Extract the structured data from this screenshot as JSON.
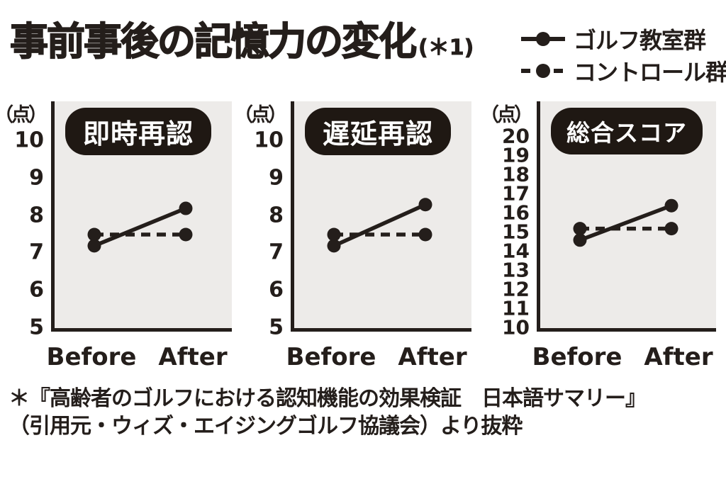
{
  "header": {
    "title": "事前事後の記憶力の変化",
    "title_note": "(＊1)"
  },
  "legend": {
    "position": "top-right",
    "items": [
      {
        "label": "ゴルフ教室群",
        "line_style": "solid",
        "marker": "circle"
      },
      {
        "label": "コントロール群",
        "line_style": "dashed",
        "marker": "circle"
      }
    ]
  },
  "chart_data": [
    {
      "type": "line",
      "title": "即時再認",
      "ylabel": "（点）",
      "x": [
        "Before",
        "After"
      ],
      "ylim": [
        5,
        10
      ],
      "yticks": [
        10,
        9,
        8,
        7,
        6,
        5
      ],
      "grid": false,
      "series": [
        {
          "name": "ゴルフ教室群",
          "style": "solid",
          "values": [
            7.2,
            8.2
          ]
        },
        {
          "name": "コントロール群",
          "style": "dashed",
          "values": [
            7.5,
            7.5
          ]
        }
      ]
    },
    {
      "type": "line",
      "title": "遅延再認",
      "ylabel": "（点）",
      "x": [
        "Before",
        "After"
      ],
      "ylim": [
        5,
        10
      ],
      "yticks": [
        10,
        9,
        8,
        7,
        6,
        5
      ],
      "grid": false,
      "series": [
        {
          "name": "ゴルフ教室群",
          "style": "solid",
          "values": [
            7.2,
            8.3
          ]
        },
        {
          "name": "コントロール群",
          "style": "dashed",
          "values": [
            7.5,
            7.5
          ]
        }
      ]
    },
    {
      "type": "line",
      "title": "総合スコア",
      "ylabel": "（点）",
      "x": [
        "Before",
        "After"
      ],
      "ylim": [
        10,
        20
      ],
      "yticks": [
        20,
        19,
        18,
        17,
        16,
        15,
        14,
        13,
        12,
        11,
        10
      ],
      "grid": false,
      "series": [
        {
          "name": "ゴルフ教室群",
          "style": "solid",
          "values": [
            14.6,
            16.4
          ]
        },
        {
          "name": "コントロール群",
          "style": "dashed",
          "values": [
            15.2,
            15.2
          ]
        }
      ]
    }
  ],
  "footnote": {
    "line1": "＊『高齢者のゴルフにおける認知機能の効果検証　日本語サマリー』",
    "line2": "（引用元・ウィズ・エイジングゴルフ協議会）より抜粋"
  },
  "colors": {
    "ink": "#241e1b",
    "plot_bg": "#edebe9",
    "pill_bg": "#1f1813",
    "pill_text": "#ffffff",
    "background": "#ffffff"
  }
}
